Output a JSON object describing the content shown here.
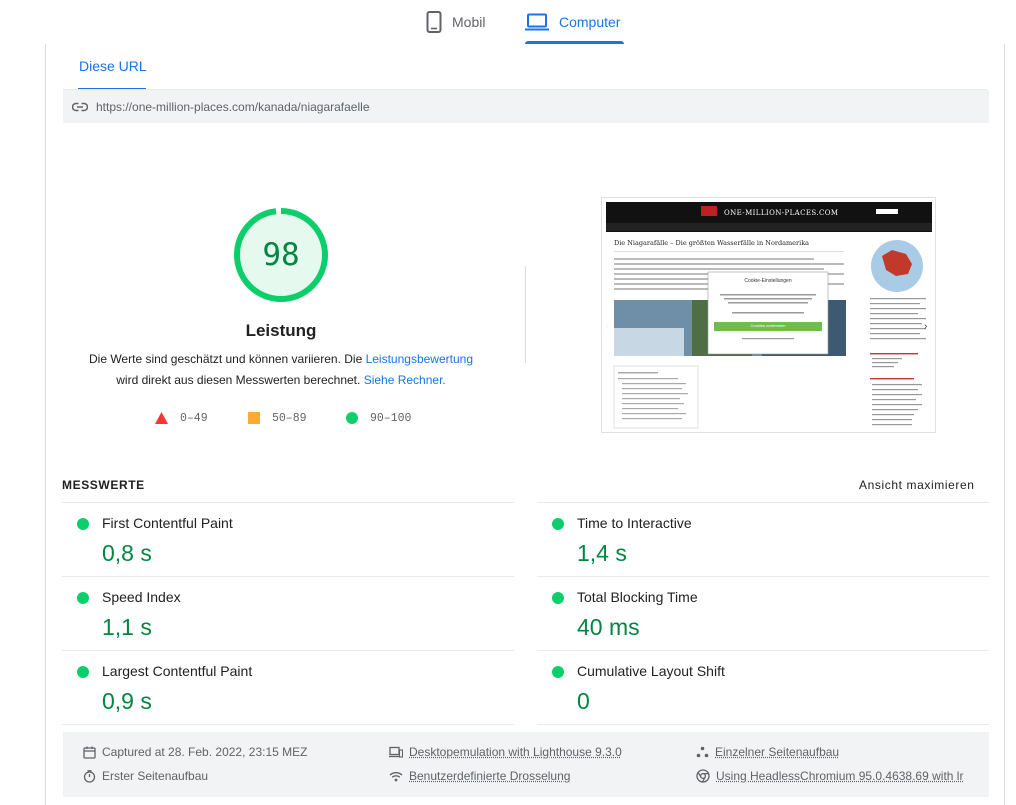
{
  "device_tabs": [
    {
      "label": "Mobil",
      "icon": "phone-icon",
      "active": false
    },
    {
      "label": "Computer",
      "icon": "laptop-icon",
      "active": true
    }
  ],
  "subtab": {
    "label": "Diese URL"
  },
  "url": "https://one-million-places.com/kanada/niagarafaelle",
  "performance": {
    "score": "98",
    "title": "Leistung",
    "desc_part1": "Die Werte sind geschätzt und können variieren. Die ",
    "desc_link1": "Leistungsbewertung",
    "desc_part2": "wird direkt aus diesen Messwerten berechnet. ",
    "desc_link2": "Siehe Rechner.",
    "score_fraction": 0.98
  },
  "legend": [
    {
      "range": "0–49",
      "shape": "triangle",
      "color": "#ff3333"
    },
    {
      "range": "50–89",
      "shape": "square",
      "color": "#ffaa33"
    },
    {
      "range": "90–100",
      "shape": "circle",
      "color": "#0cce6b"
    }
  ],
  "screenshot": {
    "site_title": "ONE-MILLION-PLACES.COM",
    "article_title": "Die Niagarafälle – Die größten Wasserfälle in Nordamerika",
    "cookie_title": "Cookie-Einstellungen",
    "cookie_button": "Cookies zustimmen"
  },
  "metrics": {
    "heading": "MESSWERTE",
    "maximize_label": "Ansicht maximieren",
    "items": [
      {
        "name": "First Contentful Paint",
        "value": "0,8 s"
      },
      {
        "name": "Time to Interactive",
        "value": "1,4 s"
      },
      {
        "name": "Speed Index",
        "value": "1,1 s"
      },
      {
        "name": "Total Blocking Time",
        "value": "40 ms"
      },
      {
        "name": "Largest Contentful Paint",
        "value": "0,9 s"
      },
      {
        "name": "Cumulative Layout Shift",
        "value": "0"
      }
    ]
  },
  "footer": {
    "captured": "Captured at 28. Feb. 2022, 23:15 MEZ",
    "first_load": "Erster Seitenaufbau",
    "emulation": "Desktopemulation with Lighthouse 9.3.0",
    "throttling": "Benutzerdefinierte Drosselung",
    "single_load": "Einzelner Seitenaufbau",
    "browser": "Using HeadlessChromium 95.0.4638.69 with lr"
  },
  "colors": {
    "accent": "#1a73e8",
    "pass": "#0cce6b",
    "pass_text": "#018642"
  }
}
